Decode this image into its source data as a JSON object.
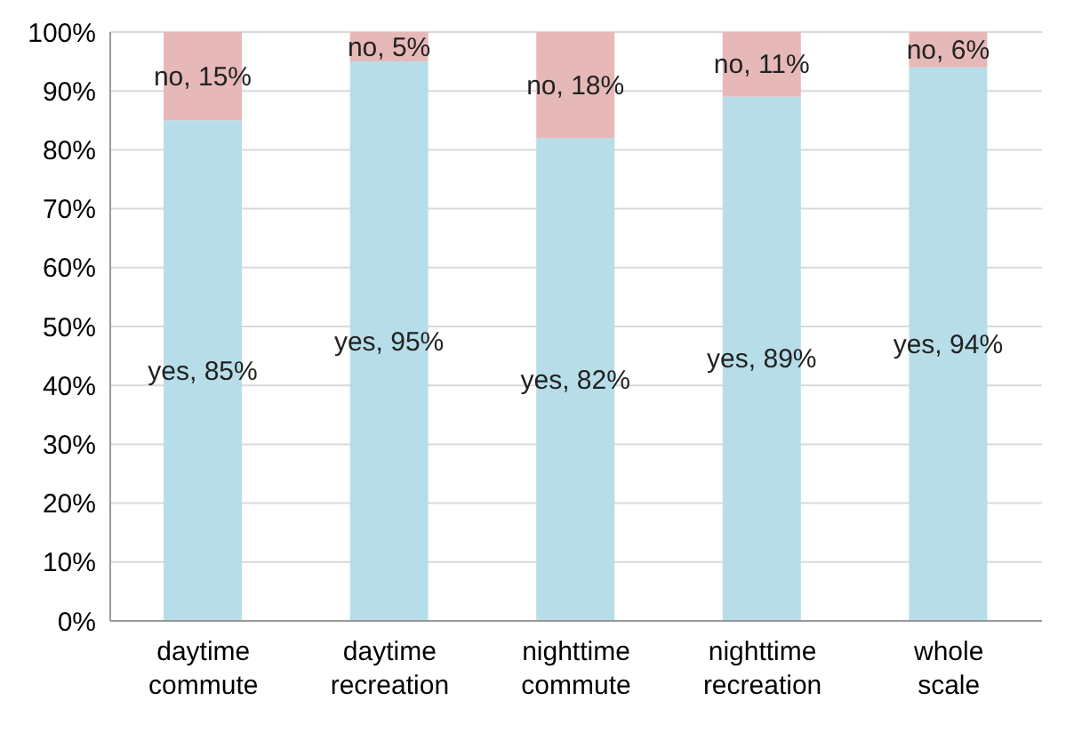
{
  "chart_data": {
    "type": "bar",
    "stacked": true,
    "categories": [
      "daytime commute",
      "daytime recreation",
      "nighttime commute",
      "nighttime recreation",
      "whole scale"
    ],
    "series": [
      {
        "color": "#b7dde8",
        "values": [
          85,
          95,
          82,
          89,
          94
        ],
        "value_labels": [
          "yes, 85%",
          "yes, 95%",
          "yes, 82%",
          "yes, 89%",
          "yes, 94%"
        ]
      },
      {
        "color": "#e6b9b8",
        "values": [
          15,
          5,
          18,
          11,
          6
        ],
        "value_labels": [
          "no, 15%",
          "no, 5%",
          "no, 18%",
          "no, 11%",
          "no, 6%"
        ]
      }
    ],
    "ylim": [
      0,
      100
    ],
    "yticks": [
      {
        "value": 0,
        "label": "0%"
      },
      {
        "value": 10,
        "label": "10%"
      },
      {
        "value": 20,
        "label": "20%"
      },
      {
        "value": 30,
        "label": "30%"
      },
      {
        "value": 40,
        "label": "40%"
      },
      {
        "value": 50,
        "label": "50%"
      },
      {
        "value": 60,
        "label": "60%"
      },
      {
        "value": 70,
        "label": "70%"
      },
      {
        "value": 80,
        "label": "80%"
      },
      {
        "value": 90,
        "label": "90%"
      },
      {
        "value": 100,
        "label": "100%"
      }
    ],
    "grid": "y",
    "legend": false
  }
}
